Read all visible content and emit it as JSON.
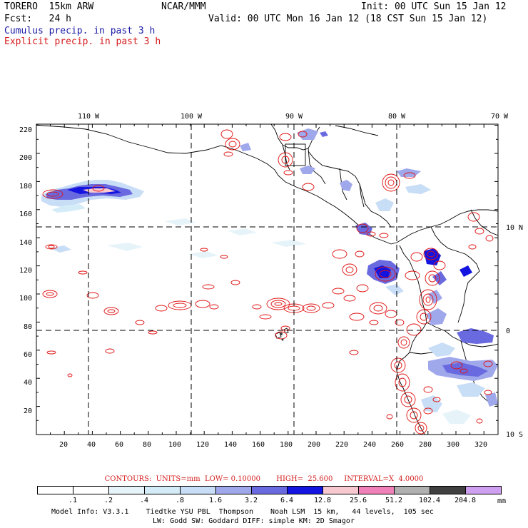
{
  "header": {
    "model": "TORERO  15km ARW",
    "org": "NCAR/MMM",
    "init": "Init: 00 UTC Sun 15 Jan 12",
    "fcst": "Fcst:   24 h",
    "valid": "Valid: 00 UTC Mon 16 Jan 12 (18 CST Sun 15 Jan 12)",
    "cumulus_label": "Cumulus precip. in past 3 h",
    "explicit_label": "Explicit precip. in past 3 h"
  },
  "map": {
    "lon_labels": [
      "110 W",
      "100 W",
      "90 W",
      "80 W",
      "70 W"
    ],
    "lat_labels": [
      "10 N",
      "0",
      "10 S"
    ],
    "y_ticks": [
      "220",
      "200",
      "180",
      "160",
      "140",
      "120",
      "100",
      "80",
      "60",
      "40",
      "20"
    ],
    "x_ticks": [
      "20",
      "40",
      "60",
      "80",
      "100",
      "120",
      "140",
      "160",
      "180",
      "200",
      "220",
      "240",
      "260",
      "280",
      "300",
      "320"
    ],
    "colors": {
      "cumulus": "#1a1aa8",
      "explicit": "#e01010",
      "coast": "#000000"
    }
  },
  "contours": {
    "text": "CONTOURS:  UNITS=mm  LOW= 0.10000       HIGH=  25.600     INTERVAL=X  4.0000"
  },
  "scale": {
    "labels": [
      ".1",
      ".2",
      ".4",
      ".8",
      "1.6",
      "3.2",
      "6.4",
      "12.8",
      "25.6",
      "51.2",
      "102.4",
      "204.8"
    ],
    "unit": "mm",
    "colors": [
      "#ffffff",
      "#ffffff",
      "#e6f4fa",
      "#d4ecf8",
      "#c8ddf6",
      "#a0a8ec",
      "#6a6ae0",
      "#1414e0",
      "#f8c8d0",
      "#f080b8",
      "#b0b0b0",
      "#404040",
      "#d0a0f0"
    ]
  },
  "footer": {
    "line1": "Model Info: V3.3.1    Tiedtke YSU PBL  Thompson    Noah LSM  15 km,   44 levels,  105 sec",
    "line2": "LW: Godd SW: Goddard DIFF: simple KM: 2D Smagor"
  }
}
